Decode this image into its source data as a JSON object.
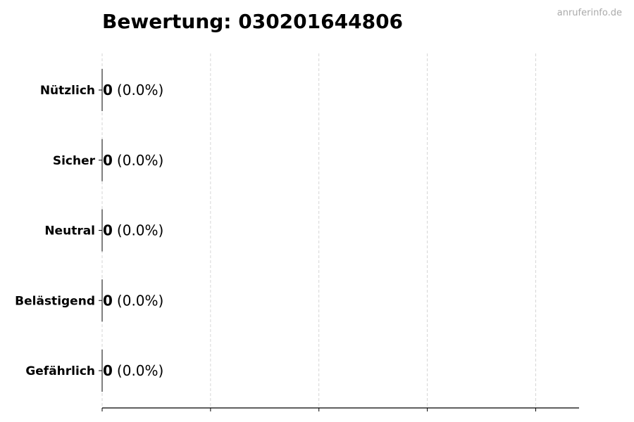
{
  "watermark": "anruferinfo.de",
  "chart_data": {
    "type": "bar",
    "orientation": "horizontal",
    "title": "Bewertung: 030201644806",
    "categories": [
      "Nützlich",
      "Sicher",
      "Neutral",
      "Belästigend",
      "Gefährlich"
    ],
    "values": [
      0,
      0,
      0,
      0,
      0
    ],
    "percent_labels": [
      "(0.0%)",
      "(0.0%)",
      "(0.0%)",
      "(0.0%)",
      "(0.0%)"
    ],
    "xlim": [
      0,
      4.4
    ],
    "xticks": [
      0,
      1,
      2,
      3,
      4
    ],
    "xtick_labels_visible": false,
    "grid": "x, dashed",
    "colors": {
      "bar_edge": "#000000",
      "grid": "#cccccc",
      "watermark": "#aaaaaa"
    }
  }
}
